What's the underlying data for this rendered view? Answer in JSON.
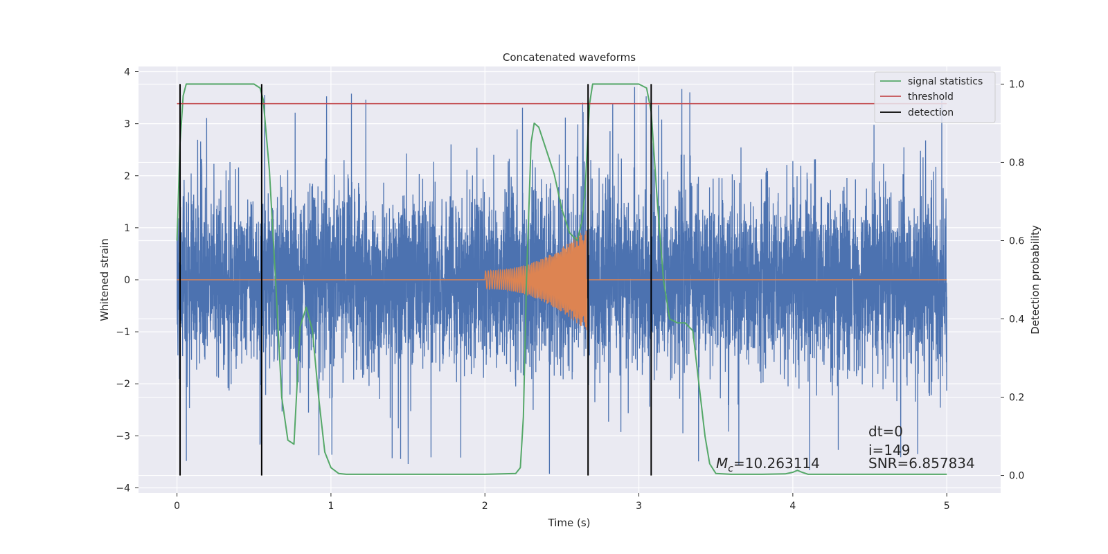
{
  "chart_data": {
    "type": "line",
    "title": "Concatenated waveforms",
    "xlabel": "Time (s)",
    "ylabel": "Whitened strain",
    "y2label": "Detection probability",
    "xlim": [
      -0.25,
      5.35
    ],
    "ylim": [
      -4.1,
      4.1
    ],
    "y2lim": [
      -0.045,
      1.045
    ],
    "x_ticks": [
      0,
      1,
      2,
      3,
      4,
      5
    ],
    "y_ticks": [
      -4,
      -3,
      -2,
      -1,
      0,
      1,
      2,
      3,
      4
    ],
    "y2_ticks": [
      0.0,
      0.2,
      0.4,
      0.6,
      0.8,
      1.0
    ],
    "x_tick_labels": [
      "0",
      "1",
      "2",
      "3",
      "4",
      "5"
    ],
    "y_tick_labels": [
      "−4",
      "−3",
      "−2",
      "−1",
      "0",
      "1",
      "2",
      "3",
      "4"
    ],
    "y2_tick_labels": [
      "0.0",
      "0.2",
      "0.4",
      "0.6",
      "0.8",
      "1.0"
    ],
    "grid": true,
    "legend_position": "top-right",
    "series": [
      {
        "name": "signal statistics",
        "axis": "right",
        "color": "#55a868",
        "x": [
          0.0,
          0.02,
          0.04,
          0.06,
          0.08,
          0.1,
          0.5,
          0.54,
          0.56,
          0.6,
          0.64,
          0.68,
          0.72,
          0.76,
          0.8,
          0.84,
          0.88,
          0.92,
          0.96,
          1.0,
          1.05,
          1.1,
          1.5,
          2.0,
          2.2,
          2.23,
          2.25,
          2.27,
          2.3,
          2.32,
          2.35,
          2.4,
          2.45,
          2.5,
          2.55,
          2.6,
          2.63,
          2.65,
          2.67,
          2.68,
          2.7,
          2.75,
          2.8,
          3.0,
          3.05,
          3.08,
          3.12,
          3.16,
          3.2,
          3.25,
          3.3,
          3.35,
          3.4,
          3.43,
          3.46,
          3.5,
          3.6,
          3.8,
          3.95,
          4.0,
          4.03,
          4.06,
          4.1,
          4.2,
          4.5,
          5.0
        ],
        "values": [
          0.6,
          0.85,
          0.97,
          1.0,
          1.0,
          1.0,
          1.0,
          0.99,
          0.96,
          0.78,
          0.5,
          0.2,
          0.09,
          0.08,
          0.38,
          0.43,
          0.37,
          0.2,
          0.06,
          0.02,
          0.005,
          0.003,
          0.003,
          0.003,
          0.005,
          0.02,
          0.15,
          0.5,
          0.85,
          0.9,
          0.89,
          0.83,
          0.77,
          0.68,
          0.62,
          0.6,
          0.65,
          0.72,
          0.88,
          0.95,
          1.0,
          1.0,
          1.0,
          1.0,
          0.99,
          0.93,
          0.7,
          0.5,
          0.4,
          0.39,
          0.39,
          0.37,
          0.2,
          0.1,
          0.03,
          0.005,
          0.003,
          0.003,
          0.004,
          0.008,
          0.013,
          0.008,
          0.003,
          0.003,
          0.003,
          0.003
        ]
      },
      {
        "name": "threshold",
        "axis": "right",
        "color": "#c44e52",
        "x": [
          0.0,
          5.0
        ],
        "values": [
          0.95,
          0.95
        ]
      },
      {
        "name": "detection",
        "axis": "right",
        "color": "#000000",
        "x": [
          0.02,
          0.55,
          2.67,
          3.08
        ],
        "y_range": [
          0.0,
          1.0
        ]
      },
      {
        "name": "",
        "axis": "left",
        "kind": "noise",
        "color": "#4c72b0",
        "x_range": [
          0.0,
          5.0
        ],
        "typical_range": [
          -1.5,
          1.5
        ],
        "peak_range": [
          -3.75,
          3.75
        ]
      },
      {
        "name": "",
        "axis": "left",
        "kind": "chirp",
        "color": "#dd8452",
        "x_range": [
          0.0,
          5.0
        ],
        "chirp_x_range": [
          2.0,
          2.66
        ],
        "peak_amplitude": 1.0
      }
    ],
    "annotations": {
      "dt": "dt=0",
      "i": "i=149",
      "snr": "SNR=6.857834",
      "mc_symbol": "M",
      "mc_subscript": "c",
      "mc_value": "=10.263114"
    }
  }
}
